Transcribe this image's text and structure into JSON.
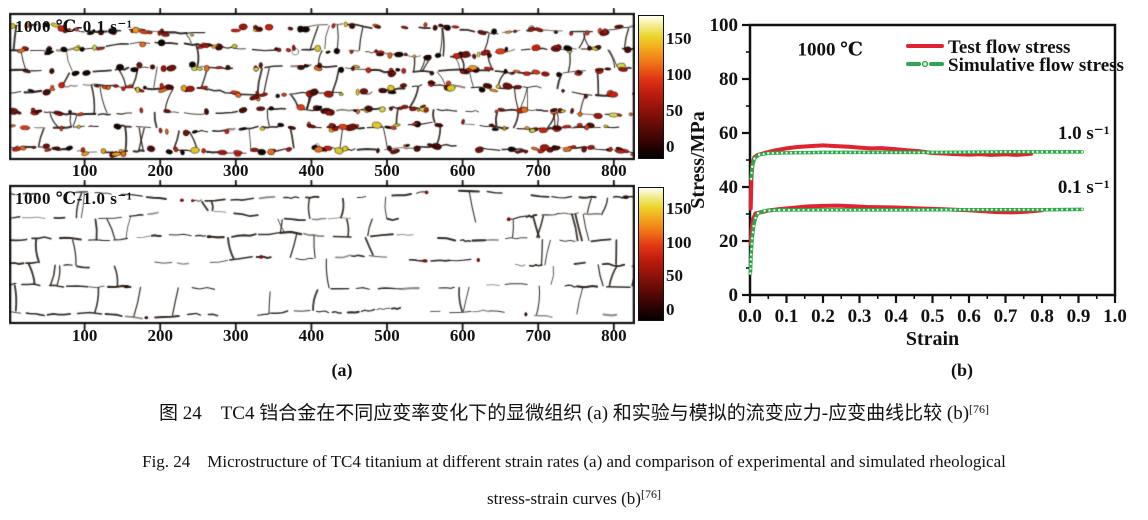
{
  "panel_a": {
    "label": "(a)",
    "x_axis_max": 828,
    "x_tick_values": [
      100,
      200,
      300,
      400,
      500,
      600,
      700,
      800
    ],
    "micrographs": [
      {
        "annotation": "1000 ℃-0.1 s⁻¹",
        "style": "dense-colored-grains",
        "colorbar": {
          "colormap": "hot",
          "tick_values": [
            150,
            100,
            50,
            0
          ]
        }
      },
      {
        "annotation": "1000 ℃-1.0 s⁻¹",
        "style": "sparse-boundary-network",
        "colorbar": {
          "colormap": "hot",
          "tick_values": [
            150,
            100,
            50,
            0
          ]
        }
      }
    ]
  },
  "panel_b": {
    "label": "(b)"
  },
  "chart_data": {
    "type": "line",
    "title": "",
    "xlabel": "Strain",
    "ylabel": "Stress/MPa",
    "xlim": [
      0.0,
      1.0
    ],
    "ylim": [
      0,
      100
    ],
    "x_tick_values": [
      0.0,
      0.1,
      0.2,
      0.3,
      0.4,
      0.5,
      0.6,
      0.7,
      0.8,
      0.9,
      1.0
    ],
    "x_minor_step": 0.05,
    "y_tick_values": [
      0,
      20,
      40,
      60,
      80,
      100
    ],
    "y_minor_step": 10,
    "grid": false,
    "legend_position": "top-right",
    "annotations": [
      {
        "text": "1000 ℃",
        "x": 0.13,
        "y": 91,
        "anchor": "start"
      },
      {
        "text": "1.0 s⁻¹",
        "x": 0.985,
        "y": 60,
        "anchor": "end"
      },
      {
        "text": "0.1 s⁻¹",
        "x": 0.985,
        "y": 40,
        "anchor": "end"
      }
    ],
    "legend": [
      {
        "label": "Test flow stress",
        "color": "#e02330",
        "style": "solid"
      },
      {
        "label": "Simulative flow stress",
        "color": "#2ea84c",
        "style": "dashdot-circle"
      }
    ],
    "colors": {
      "test": "#e02330",
      "simulative": "#2ea84c",
      "axis": "#111111"
    },
    "series": [
      {
        "name": "test-flow-stress-1.0s",
        "color": "#e02330",
        "style": "solid",
        "width": 4,
        "points": [
          [
            0.002,
            32
          ],
          [
            0.004,
            44
          ],
          [
            0.007,
            49
          ],
          [
            0.012,
            51
          ],
          [
            0.02,
            51.8
          ],
          [
            0.04,
            52.6
          ],
          [
            0.07,
            53.6
          ],
          [
            0.1,
            54.3
          ],
          [
            0.13,
            54.8
          ],
          [
            0.17,
            55.2
          ],
          [
            0.2,
            55.4
          ],
          [
            0.23,
            55.2
          ],
          [
            0.27,
            54.9
          ],
          [
            0.3,
            54.6
          ],
          [
            0.33,
            54.3
          ],
          [
            0.36,
            54.4
          ],
          [
            0.4,
            54.0
          ],
          [
            0.43,
            53.6
          ],
          [
            0.46,
            53.3
          ],
          [
            0.5,
            52.6
          ],
          [
            0.53,
            52.4
          ],
          [
            0.56,
            52.2
          ],
          [
            0.6,
            52.0
          ],
          [
            0.63,
            52.2
          ],
          [
            0.66,
            51.9
          ],
          [
            0.7,
            52.1
          ],
          [
            0.73,
            51.9
          ],
          [
            0.77,
            52.3
          ]
        ]
      },
      {
        "name": "simulative-flow-stress-1.0s",
        "color": "#2ea84c",
        "style": "dashdot-circle",
        "width": 3.5,
        "points": [
          [
            0.003,
            43
          ],
          [
            0.006,
            47.5
          ],
          [
            0.012,
            50.5
          ],
          [
            0.025,
            52
          ],
          [
            0.05,
            52.5
          ],
          [
            0.1,
            52.7
          ],
          [
            0.2,
            52.8
          ],
          [
            0.3,
            52.8
          ],
          [
            0.4,
            52.8
          ],
          [
            0.5,
            52.8
          ],
          [
            0.6,
            52.9
          ],
          [
            0.7,
            53.0
          ],
          [
            0.8,
            53.0
          ],
          [
            0.91,
            53.0
          ]
        ]
      },
      {
        "name": "test-flow-stress-0.1s",
        "color": "#e02330",
        "style": "solid",
        "width": 4,
        "points": [
          [
            0.002,
            19
          ],
          [
            0.004,
            24
          ],
          [
            0.008,
            28
          ],
          [
            0.015,
            30.2
          ],
          [
            0.05,
            31.3
          ],
          [
            0.08,
            31.8
          ],
          [
            0.12,
            32.3
          ],
          [
            0.16,
            32.8
          ],
          [
            0.2,
            33.0
          ],
          [
            0.24,
            33.1
          ],
          [
            0.28,
            32.9
          ],
          [
            0.32,
            32.6
          ],
          [
            0.36,
            32.5
          ],
          [
            0.4,
            32.4
          ],
          [
            0.44,
            32.2
          ],
          [
            0.48,
            32.0
          ],
          [
            0.52,
            31.8
          ],
          [
            0.56,
            31.6
          ],
          [
            0.6,
            31.4
          ],
          [
            0.64,
            31.0
          ],
          [
            0.68,
            30.7
          ],
          [
            0.72,
            30.6
          ],
          [
            0.76,
            30.9
          ],
          [
            0.8,
            31.4
          ]
        ]
      },
      {
        "name": "simulative-flow-stress-0.1s",
        "color": "#2ea84c",
        "style": "dashdot-circle",
        "width": 3.5,
        "points": [
          [
            0.001,
            8
          ],
          [
            0.003,
            15
          ],
          [
            0.006,
            21
          ],
          [
            0.01,
            25.5
          ],
          [
            0.015,
            28.5
          ],
          [
            0.022,
            30.3
          ],
          [
            0.04,
            31.2
          ],
          [
            0.08,
            31.5
          ],
          [
            0.2,
            31.5
          ],
          [
            0.4,
            31.5
          ],
          [
            0.6,
            31.6
          ],
          [
            0.8,
            31.6
          ],
          [
            0.91,
            31.7
          ]
        ]
      }
    ]
  },
  "captions": {
    "cn_main": "图 24　TC4 铛合金在不同应变率变化下的显微组织 (a) 和实验与模拟的流变应力-应变曲线比较 (b)",
    "cn_sup": "[76]",
    "en_line1": "Fig. 24 Microstructure of TC4 titanium at different strain rates (a) and comparison of experimental and simulated rheological",
    "en_line2_main": "stress-strain curves (b)",
    "en_line2_sup": "[76]"
  }
}
